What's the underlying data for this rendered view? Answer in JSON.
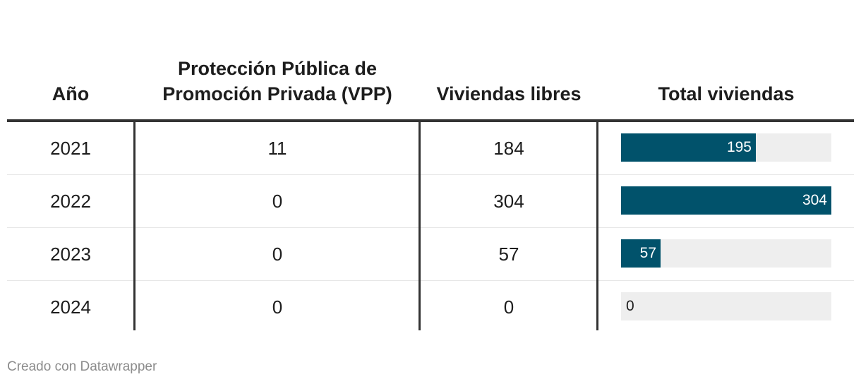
{
  "chart_data": {
    "type": "table",
    "columns": [
      "Año",
      "Protección Pública de Promoción Privada (VPP)",
      "Viviendas libres",
      "Total viviendas"
    ],
    "rows": [
      {
        "year": "2021",
        "vpp": 11,
        "libres": 184,
        "total": 195
      },
      {
        "year": "2022",
        "vpp": 0,
        "libres": 304,
        "total": 304
      },
      {
        "year": "2023",
        "vpp": 0,
        "libres": 57,
        "total": 57
      },
      {
        "year": "2024",
        "vpp": 0,
        "libres": 0,
        "total": 0
      }
    ],
    "bar_column": "Total viviendas",
    "bar_max": 304,
    "bar_color": "#01526b",
    "bar_track_color": "#eeeeee"
  },
  "footer": {
    "credit": "Creado con Datawrapper"
  }
}
